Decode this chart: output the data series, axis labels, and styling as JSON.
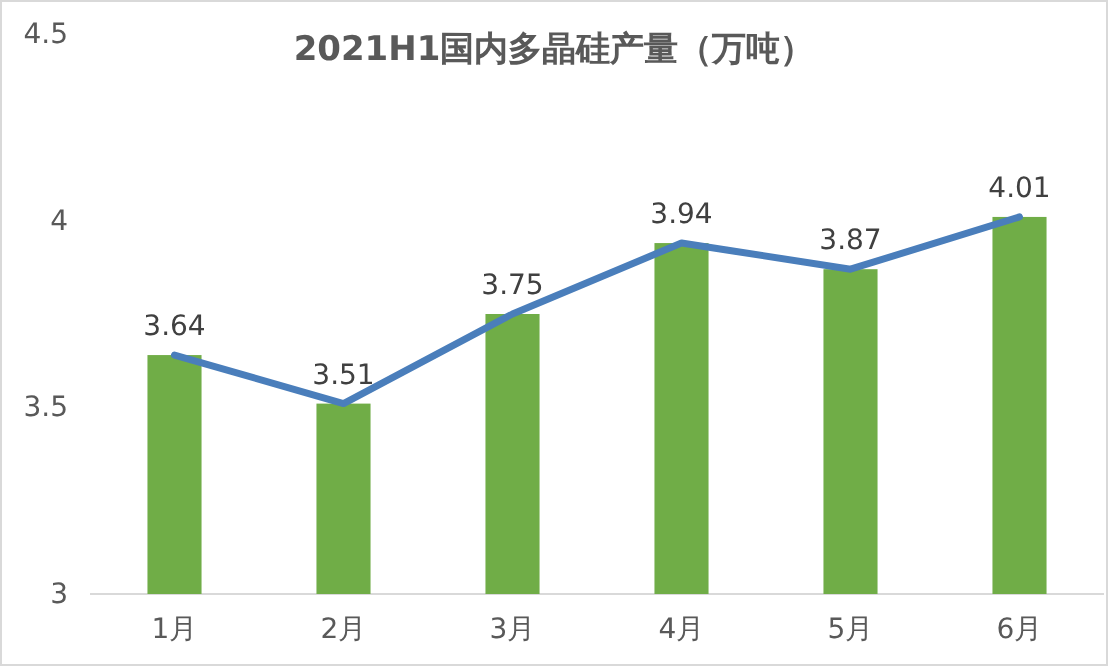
{
  "chart_data": {
    "type": "bar",
    "title": "2021H1国内多晶硅产量（万吨）",
    "categories": [
      "1月",
      "2月",
      "3月",
      "4月",
      "5月",
      "6月"
    ],
    "series": [
      {
        "color": "#70ad47",
        "values": [
          3.64,
          3.51,
          3.75,
          3.94,
          3.87,
          4.01
        ]
      },
      {
        "type": "line",
        "color": "#4a7ebb",
        "values": [
          3.64,
          3.51,
          3.75,
          3.94,
          3.87,
          4.01
        ],
        "value_labels": [
          "3.64",
          "3.51",
          "3.75",
          "3.94",
          "3.87",
          "4.01"
        ]
      }
    ],
    "ylim": [
      3,
      4.5
    ],
    "yticks": [
      3,
      {
        "value": 3.5,
        "label": "3.5"
      },
      4,
      {
        "value": 4.5,
        "label": "4.5"
      }
    ],
    "grid": false
  }
}
